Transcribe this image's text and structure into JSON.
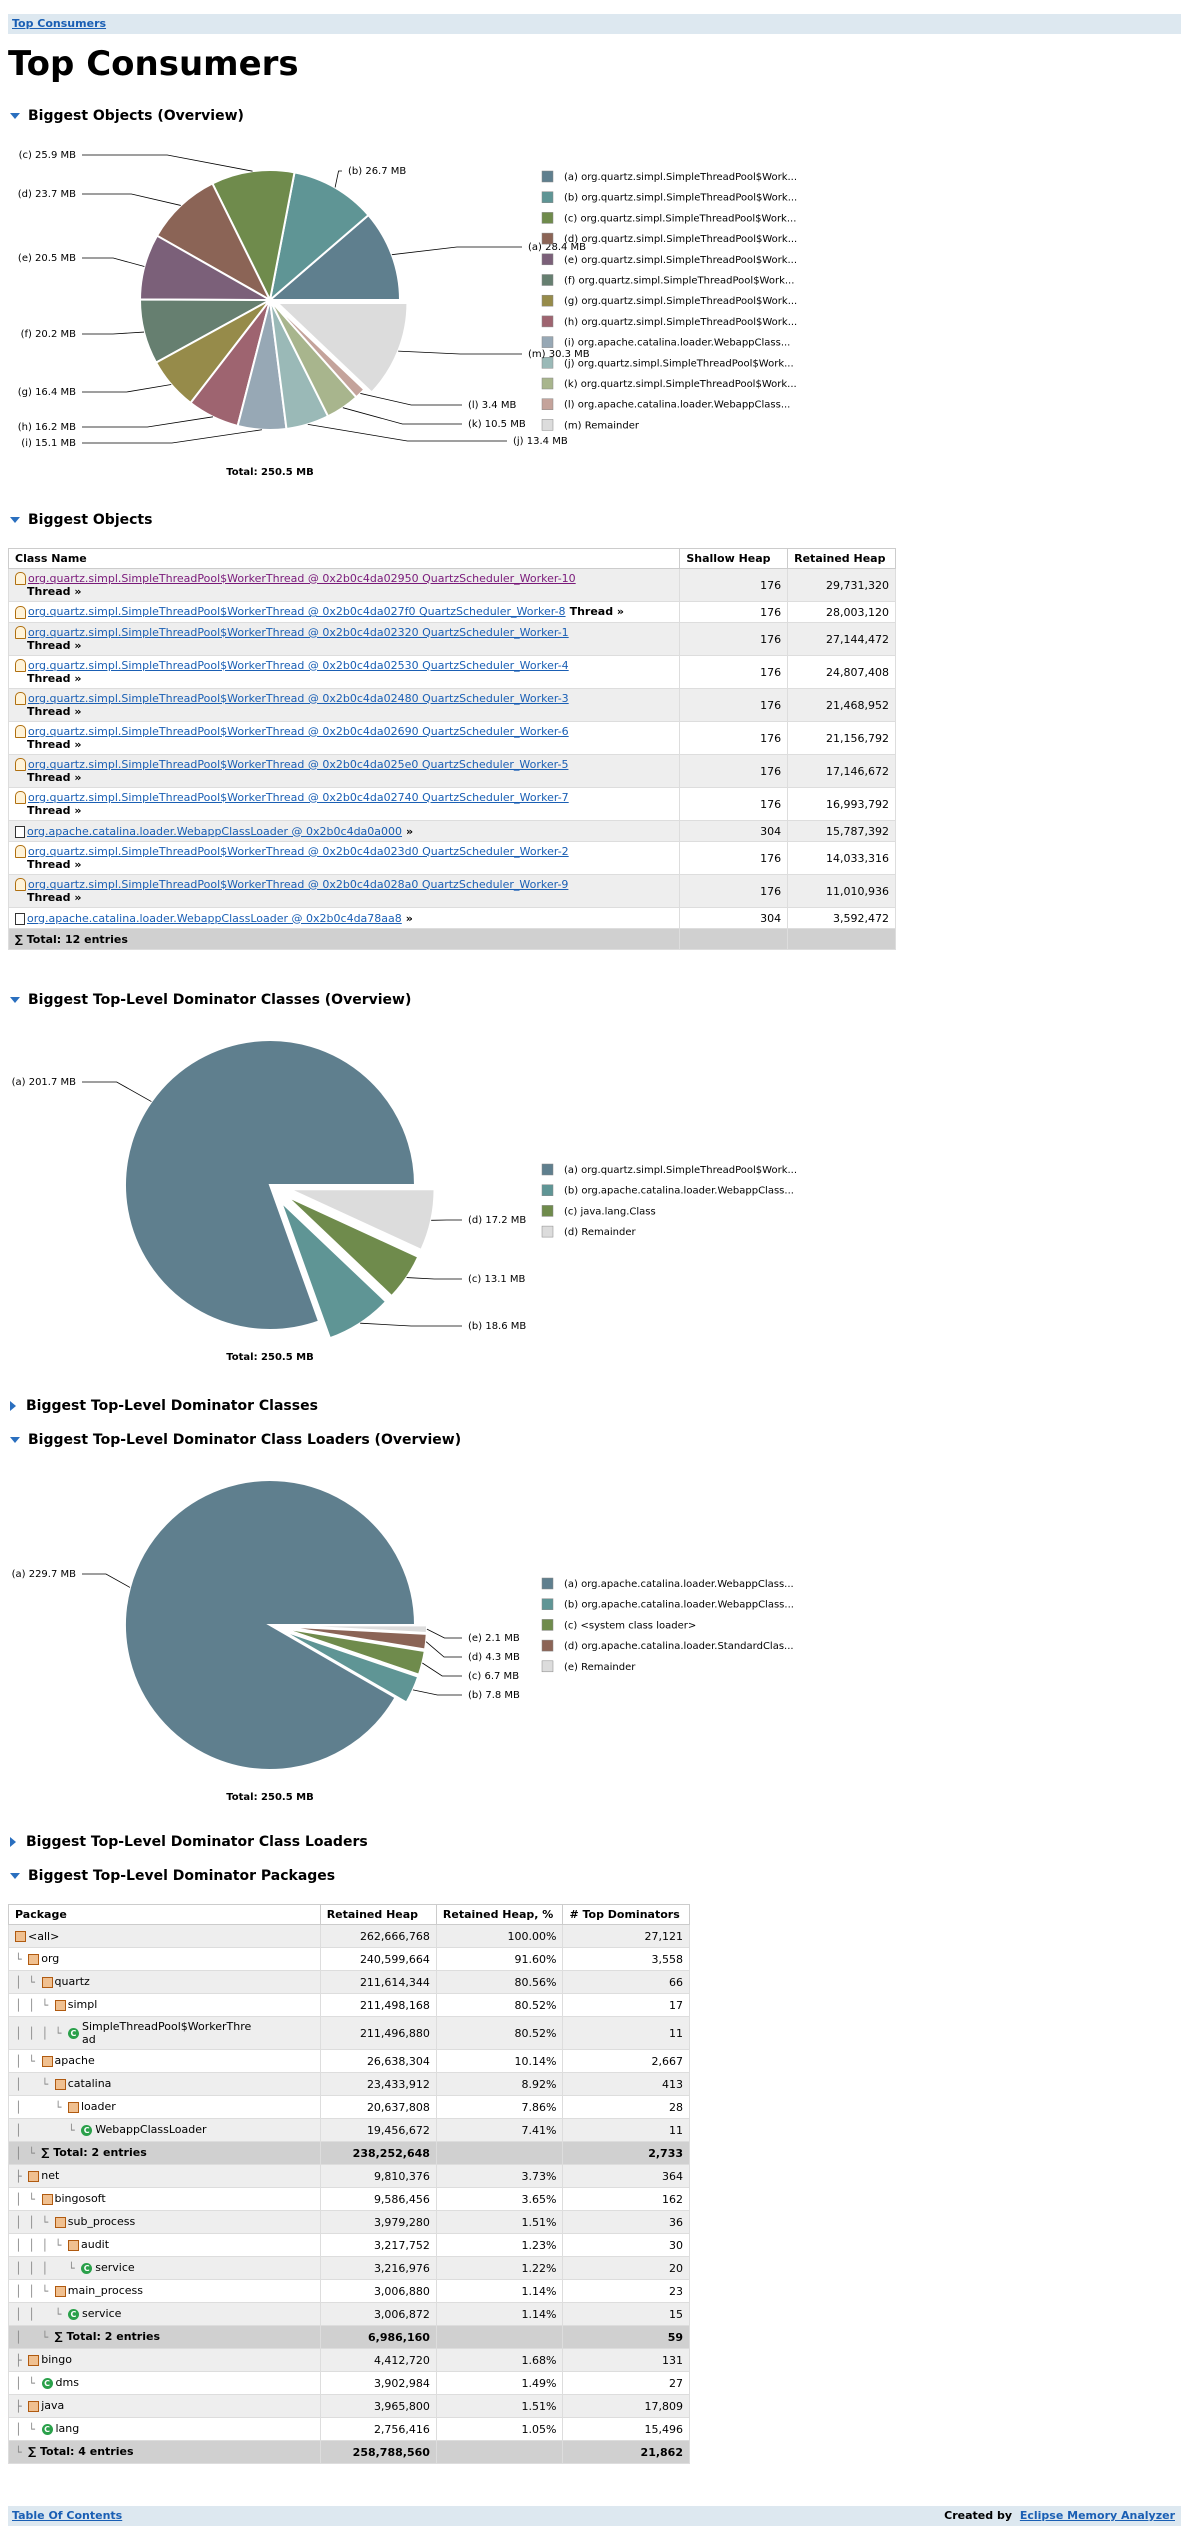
{
  "nav": {
    "top_link": "Top Consumers",
    "bottom_link": "Table Of Contents",
    "created_by": "Created by",
    "created_by_link": "Eclipse Memory Analyzer"
  },
  "page_title": "Top Consumers",
  "sections": {
    "s1": "Biggest Objects (Overview)",
    "s2": "Biggest Objects",
    "s3": "Biggest Top-Level Dominator Classes (Overview)",
    "s4": "Biggest Top-Level Dominator Classes",
    "s5": "Biggest Top-Level Dominator Class Loaders (Overview)",
    "s6": "Biggest Top-Level Dominator Class Loaders",
    "s7": "Biggest Top-Level Dominator Packages"
  },
  "chart_data": [
    {
      "type": "pie",
      "total_label": "Total: 250.5 MB",
      "slices": [
        {
          "key": "(a)",
          "value": 28.4,
          "label": "28.4 MB",
          "legend": "org.quartz.simpl.SimpleThreadPool$Work...",
          "color": "#5f7f8e"
        },
        {
          "key": "(b)",
          "value": 26.7,
          "label": "26.7 MB",
          "legend": "org.quartz.simpl.SimpleThreadPool$Work...",
          "color": "#5f9595"
        },
        {
          "key": "(c)",
          "value": 25.9,
          "label": "25.9 MB",
          "legend": "org.quartz.simpl.SimpleThreadPool$Work...",
          "color": "#6f8b4c"
        },
        {
          "key": "(d)",
          "value": 23.7,
          "label": "23.7 MB",
          "legend": "org.quartz.simpl.SimpleThreadPool$Work...",
          "color": "#8b6456"
        },
        {
          "key": "(e)",
          "value": 20.5,
          "label": "20.5 MB",
          "legend": "org.quartz.simpl.SimpleThreadPool$Work...",
          "color": "#7b6079"
        },
        {
          "key": "(f)",
          "value": 20.2,
          "label": "20.2 MB",
          "legend": "org.quartz.simpl.SimpleThreadPool$Work...",
          "color": "#667f70"
        },
        {
          "key": "(g)",
          "value": 16.4,
          "label": "16.4 MB",
          "legend": "org.quartz.simpl.SimpleThreadPool$Work...",
          "color": "#968b4a"
        },
        {
          "key": "(h)",
          "value": 16.2,
          "label": "16.2 MB",
          "legend": "org.quartz.simpl.SimpleThreadPool$Work...",
          "color": "#9e6470"
        },
        {
          "key": "(i)",
          "value": 15.1,
          "label": "15.1 MB",
          "legend": "org.apache.catalina.loader.WebappClass...",
          "color": "#97a8b5"
        },
        {
          "key": "(j)",
          "value": 13.4,
          "label": "13.4 MB",
          "legend": "org.quartz.simpl.SimpleThreadPool$Work...",
          "color": "#9ab9b7"
        },
        {
          "key": "(k)",
          "value": 10.5,
          "label": "10.5 MB",
          "legend": "org.quartz.simpl.SimpleThreadPool$Work...",
          "color": "#a8b58d"
        },
        {
          "key": "(l)",
          "value": 3.4,
          "label": "3.4 MB",
          "legend": "org.apache.catalina.loader.WebappClass...",
          "color": "#c4a39b"
        },
        {
          "key": "(m)",
          "value": 30.3,
          "label": "30.3 MB",
          "legend": "Remainder",
          "color": "#dcdcdc"
        }
      ]
    },
    {
      "type": "pie",
      "total_label": "Total: 250.5 MB",
      "slices": [
        {
          "key": "(a)",
          "value": 201.7,
          "label": "201.7 MB",
          "legend": "org.quartz.simpl.SimpleThreadPool$Work...",
          "color": "#5f7f8e"
        },
        {
          "key": "(b)",
          "value": 18.6,
          "label": "18.6 MB",
          "legend": "org.apache.catalina.loader.WebappClass...",
          "color": "#5f9595"
        },
        {
          "key": "(c)",
          "value": 13.1,
          "label": "13.1 MB",
          "legend": "java.lang.Class",
          "color": "#6f8b4c"
        },
        {
          "key": "(d)",
          "value": 17.2,
          "label": "17.2 MB",
          "legend": "Remainder",
          "color": "#dcdcdc"
        }
      ]
    },
    {
      "type": "pie",
      "total_label": "Total: 250.5 MB",
      "slices": [
        {
          "key": "(a)",
          "value": 229.7,
          "label": "229.7 MB",
          "legend": "org.apache.catalina.loader.WebappClass...",
          "color": "#5f7f8e"
        },
        {
          "key": "(b)",
          "value": 7.8,
          "label": "7.8 MB",
          "legend": "org.apache.catalina.loader.WebappClass...",
          "color": "#5f9595"
        },
        {
          "key": "(c)",
          "value": 6.7,
          "label": "6.7 MB",
          "legend": "<system class loader>",
          "color": "#6f8b4c"
        },
        {
          "key": "(d)",
          "value": 4.3,
          "label": "4.3 MB",
          "legend": "org.apache.catalina.loader.StandardClas...",
          "color": "#8b6456"
        },
        {
          "key": "(e)",
          "value": 2.1,
          "label": "2.1 MB",
          "legend": "Remainder",
          "color": "#dcdcdc"
        }
      ]
    }
  ],
  "biggest_objects": {
    "headers": [
      "Class Name",
      "Shallow Heap",
      "Retained Heap"
    ],
    "rows": [
      {
        "name": "org.quartz.simpl.SimpleThreadPool$WorkerThread @ 0x2b0c4da02950 QuartzScheduler_Worker-10",
        "suffix": "Thread »",
        "shallow": "176",
        "retained": "29,731,320",
        "kind": "thread",
        "visited": true
      },
      {
        "name": "org.quartz.simpl.SimpleThreadPool$WorkerThread @ 0x2b0c4da027f0 QuartzScheduler_Worker-8",
        "suffix": "Thread »",
        "shallow": "176",
        "retained": "28,003,120",
        "kind": "thread",
        "inline": true
      },
      {
        "name": "org.quartz.simpl.SimpleThreadPool$WorkerThread @ 0x2b0c4da02320 QuartzScheduler_Worker-1",
        "suffix": "Thread »",
        "shallow": "176",
        "retained": "27,144,472",
        "kind": "thread"
      },
      {
        "name": "org.quartz.simpl.SimpleThreadPool$WorkerThread @ 0x2b0c4da02530 QuartzScheduler_Worker-4",
        "suffix": "Thread »",
        "shallow": "176",
        "retained": "24,807,408",
        "kind": "thread"
      },
      {
        "name": "org.quartz.simpl.SimpleThreadPool$WorkerThread @ 0x2b0c4da02480 QuartzScheduler_Worker-3",
        "suffix": "Thread »",
        "shallow": "176",
        "retained": "21,468,952",
        "kind": "thread"
      },
      {
        "name": "org.quartz.simpl.SimpleThreadPool$WorkerThread @ 0x2b0c4da02690 QuartzScheduler_Worker-6",
        "suffix": "Thread »",
        "shallow": "176",
        "retained": "21,156,792",
        "kind": "thread"
      },
      {
        "name": "org.quartz.simpl.SimpleThreadPool$WorkerThread @ 0x2b0c4da025e0 QuartzScheduler_Worker-5",
        "suffix": "Thread »",
        "shallow": "176",
        "retained": "17,146,672",
        "kind": "thread"
      },
      {
        "name": "org.quartz.simpl.SimpleThreadPool$WorkerThread @ 0x2b0c4da02740 QuartzScheduler_Worker-7",
        "suffix": "Thread »",
        "shallow": "176",
        "retained": "16,993,792",
        "kind": "thread"
      },
      {
        "name": "org.apache.catalina.loader.WebappClassLoader @ 0x2b0c4da0a000",
        "suffix": "»",
        "shallow": "304",
        "retained": "15,787,392",
        "kind": "loader",
        "inline": true
      },
      {
        "name": "org.quartz.simpl.SimpleThreadPool$WorkerThread @ 0x2b0c4da023d0 QuartzScheduler_Worker-2",
        "suffix": "Thread »",
        "shallow": "176",
        "retained": "14,033,316",
        "kind": "thread"
      },
      {
        "name": "org.quartz.simpl.SimpleThreadPool$WorkerThread @ 0x2b0c4da028a0 QuartzScheduler_Worker-9",
        "suffix": "Thread »",
        "shallow": "176",
        "retained": "11,010,936",
        "kind": "thread"
      },
      {
        "name": "org.apache.catalina.loader.WebappClassLoader @ 0x2b0c4da78aa8",
        "suffix": "»",
        "shallow": "304",
        "retained": "3,592,472",
        "kind": "loader",
        "inline": true
      }
    ],
    "total": "∑ Total: 12 entries"
  },
  "packages": {
    "headers": [
      "Package",
      "Retained Heap",
      "Retained Heap, %",
      "# Top Dominators"
    ],
    "rows": [
      {
        "tree": "",
        "icon": "pkg",
        "name": "<all>",
        "retained": "262,666,768",
        "pct": "100.00%",
        "dom": "27,121"
      },
      {
        "tree": "└",
        "icon": "pkg",
        "name": "org",
        "retained": "240,599,664",
        "pct": "91.60%",
        "dom": "3,558"
      },
      {
        "tree": "│ └",
        "icon": "pkg",
        "name": "quartz",
        "retained": "211,614,344",
        "pct": "80.56%",
        "dom": "66"
      },
      {
        "tree": "│ │ └",
        "icon": "pkg",
        "name": "simpl",
        "retained": "211,498,168",
        "pct": "80.52%",
        "dom": "17"
      },
      {
        "tree": "│ │ │ └",
        "icon": "class",
        "name": "SimpleThreadPool$WorkerThread",
        "retained": "211,496,880",
        "pct": "80.52%",
        "dom": "11"
      },
      {
        "tree": "│ └",
        "icon": "pkg",
        "name": "apache",
        "retained": "26,638,304",
        "pct": "10.14%",
        "dom": "2,667"
      },
      {
        "tree": "│   └",
        "icon": "pkg",
        "name": "catalina",
        "retained": "23,433,912",
        "pct": "8.92%",
        "dom": "413"
      },
      {
        "tree": "│     └",
        "icon": "pkg",
        "name": "loader",
        "retained": "20,637,808",
        "pct": "7.86%",
        "dom": "28"
      },
      {
        "tree": "│       └",
        "icon": "class",
        "name": "WebappClassLoader",
        "retained": "19,456,672",
        "pct": "7.41%",
        "dom": "11"
      },
      {
        "tree": "│ └",
        "icon": "total",
        "name": "∑ Total: 2 entries",
        "retained": "238,252,648",
        "pct": "",
        "dom": "2,733",
        "total": true
      },
      {
        "tree": "├",
        "icon": "pkg",
        "name": "net",
        "retained": "9,810,376",
        "pct": "3.73%",
        "dom": "364"
      },
      {
        "tree": "│ └",
        "icon": "pkg",
        "name": "bingosoft",
        "retained": "9,586,456",
        "pct": "3.65%",
        "dom": "162"
      },
      {
        "tree": "│ │ └",
        "icon": "pkg",
        "name": "sub_process",
        "retained": "3,979,280",
        "pct": "1.51%",
        "dom": "36"
      },
      {
        "tree": "│ │ │ └",
        "icon": "pkg",
        "name": "audit",
        "retained": "3,217,752",
        "pct": "1.23%",
        "dom": "30"
      },
      {
        "tree": "│ │ │   └",
        "icon": "class",
        "name": "service",
        "retained": "3,216,976",
        "pct": "1.22%",
        "dom": "20"
      },
      {
        "tree": "│ │ └",
        "icon": "pkg",
        "name": "main_process",
        "retained": "3,006,880",
        "pct": "1.14%",
        "dom": "23"
      },
      {
        "tree": "│ │   └",
        "icon": "class",
        "name": "service",
        "retained": "3,006,872",
        "pct": "1.14%",
        "dom": "15"
      },
      {
        "tree": "│   └",
        "icon": "total",
        "name": "∑ Total: 2 entries",
        "retained": "6,986,160",
        "pct": "",
        "dom": "59",
        "total": true
      },
      {
        "tree": "├",
        "icon": "pkg",
        "name": "bingo",
        "retained": "4,412,720",
        "pct": "1.68%",
        "dom": "131"
      },
      {
        "tree": "│ └",
        "icon": "class",
        "name": "dms",
        "retained": "3,902,984",
        "pct": "1.49%",
        "dom": "27"
      },
      {
        "tree": "├",
        "icon": "pkg",
        "name": "java",
        "retained": "3,965,800",
        "pct": "1.51%",
        "dom": "17,809"
      },
      {
        "tree": "│ └",
        "icon": "class",
        "name": "lang",
        "retained": "2,756,416",
        "pct": "1.05%",
        "dom": "15,496"
      },
      {
        "tree": "└",
        "icon": "total",
        "name": "∑ Total: 4 entries",
        "retained": "258,788,560",
        "pct": "",
        "dom": "21,862",
        "total": true
      }
    ]
  },
  "icons": {
    "expanded": "triangle-down-icon",
    "collapsed": "triangle-right-icon",
    "package": "package-icon",
    "class": "class-icon",
    "object": "object-icon",
    "loader": "class-loader-icon"
  }
}
